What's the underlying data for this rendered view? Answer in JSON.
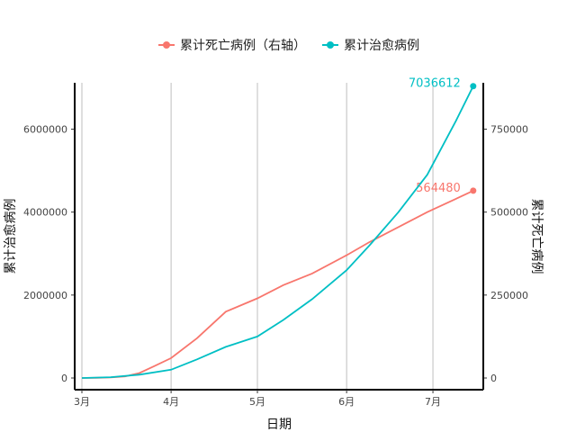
{
  "chart_data": {
    "type": "line",
    "xlabel": "日期",
    "ylabel_left": "累计治愈病例",
    "ylabel_right": "累计死亡病例",
    "x_ticks": [
      "3月",
      "4月",
      "5月",
      "6月",
      "7月"
    ],
    "y_left_ticks": [
      "0",
      "2000000",
      "4000000",
      "6000000"
    ],
    "y_right_ticks": [
      "0",
      "250000",
      "500000",
      "750000"
    ],
    "y_left_range": [
      0,
      7400000
    ],
    "y_right_range": [
      0,
      925000
    ],
    "x_range_days": [
      -2.5,
      139.5
    ],
    "legend_position": "top",
    "grid": "vertical major lines only",
    "series": [
      {
        "name": "累计死亡病例（右轴）",
        "axis": "right",
        "color": "#F8766D",
        "x": [
          0,
          5,
          10,
          15,
          20,
          25,
          31,
          40,
          50,
          61,
          70,
          80,
          92,
          100,
          110,
          120,
          130,
          136
        ],
        "values": [
          0,
          500,
          1500,
          5000,
          15000,
          35000,
          60000,
          120000,
          200000,
          240000,
          280000,
          315000,
          370000,
          410000,
          455000,
          500000,
          540000,
          564480
        ],
        "end_label": "564480"
      },
      {
        "name": "累计治愈病例",
        "axis": "left",
        "color": "#00BFC4",
        "x": [
          0,
          10,
          20,
          31,
          40,
          50,
          61,
          70,
          80,
          92,
          100,
          110,
          120,
          130,
          136
        ],
        "values": [
          0,
          20000,
          80000,
          200000,
          450000,
          750000,
          1000000,
          1400000,
          1900000,
          2600000,
          3200000,
          4000000,
          4900000,
          6200000,
          7036612
        ],
        "end_label": "7036612"
      }
    ]
  },
  "colors": {
    "deaths": "#F8766D",
    "recovered": "#00BFC4",
    "grid": "#BEBEBE",
    "axis": "#000000"
  }
}
